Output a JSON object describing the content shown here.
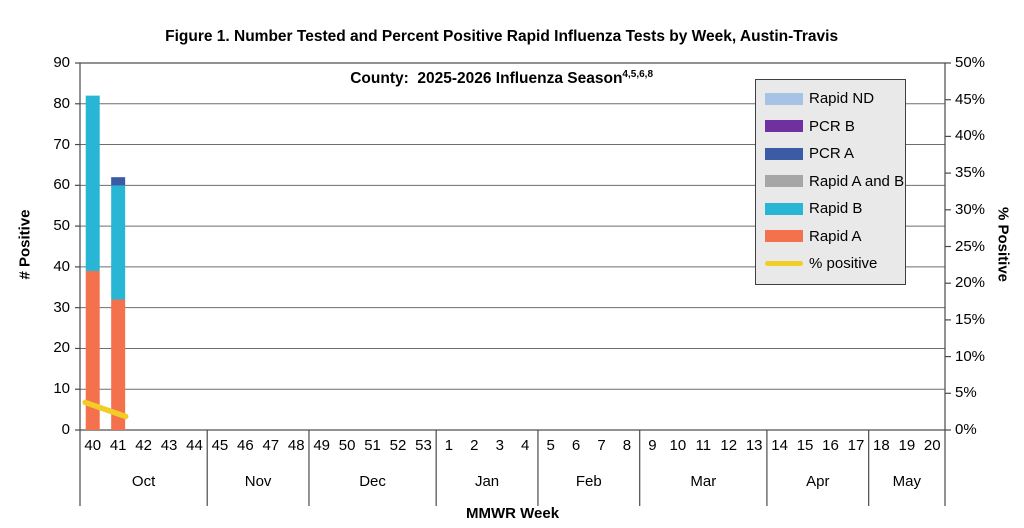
{
  "figure": {
    "title_line1": "Figure 1. Number Tested and Percent Positive Rapid Influenza Tests by Week, Austin-Travis",
    "title_line2": "County:  2025-2026 Influenza Season",
    "title_superscript": "4,5,6,8"
  },
  "chart_data": {
    "type": "bar",
    "overlay": "line",
    "title": "Figure 1. Number Tested and Percent Positive Rapid Influenza Tests by Week, Austin-Travis County: 2025-2026 Influenza Season",
    "xlabel": "MMWR Week",
    "left_axis": {
      "label": "# Positive",
      "min": 0,
      "max": 90,
      "step": 10
    },
    "right_axis": {
      "label": "% Positive",
      "min": 0,
      "max": 50,
      "step": 5,
      "suffix": "%"
    },
    "grid": "horizontal",
    "legend_position": "upper-right-inside",
    "categories": [
      "40",
      "41",
      "42",
      "43",
      "44",
      "45",
      "46",
      "47",
      "48",
      "49",
      "50",
      "51",
      "52",
      "53",
      "1",
      "2",
      "3",
      "4",
      "5",
      "6",
      "7",
      "8",
      "9",
      "10",
      "11",
      "12",
      "13",
      "14",
      "15",
      "16",
      "17",
      "18",
      "19",
      "20"
    ],
    "month_groups": [
      {
        "label": "Oct",
        "weeks": 5
      },
      {
        "label": "Nov",
        "weeks": 4
      },
      {
        "label": "Dec",
        "weeks": 5
      },
      {
        "label": "Jan",
        "weeks": 4
      },
      {
        "label": "Feb",
        "weeks": 4
      },
      {
        "label": "Mar",
        "weeks": 5
      },
      {
        "label": "Apr",
        "weeks": 4
      },
      {
        "label": "May",
        "weeks": 3
      }
    ],
    "series": [
      {
        "name": "Rapid A",
        "color": "#f4714d",
        "values": [
          39,
          32,
          0,
          0,
          0,
          0,
          0,
          0,
          0,
          0,
          0,
          0,
          0,
          0,
          0,
          0,
          0,
          0,
          0,
          0,
          0,
          0,
          0,
          0,
          0,
          0,
          0,
          0,
          0,
          0,
          0,
          0,
          0,
          0
        ]
      },
      {
        "name": "Rapid B",
        "color": "#29b5d4",
        "values": [
          43,
          28,
          0,
          0,
          0,
          0,
          0,
          0,
          0,
          0,
          0,
          0,
          0,
          0,
          0,
          0,
          0,
          0,
          0,
          0,
          0,
          0,
          0,
          0,
          0,
          0,
          0,
          0,
          0,
          0,
          0,
          0,
          0,
          0
        ]
      },
      {
        "name": "Rapid A and B",
        "color": "#a6a6a6",
        "values": [
          0,
          0,
          0,
          0,
          0,
          0,
          0,
          0,
          0,
          0,
          0,
          0,
          0,
          0,
          0,
          0,
          0,
          0,
          0,
          0,
          0,
          0,
          0,
          0,
          0,
          0,
          0,
          0,
          0,
          0,
          0,
          0,
          0,
          0
        ]
      },
      {
        "name": "PCR A",
        "color": "#3c5ba5",
        "values": [
          0,
          2,
          0,
          0,
          0,
          0,
          0,
          0,
          0,
          0,
          0,
          0,
          0,
          0,
          0,
          0,
          0,
          0,
          0,
          0,
          0,
          0,
          0,
          0,
          0,
          0,
          0,
          0,
          0,
          0,
          0,
          0,
          0,
          0
        ]
      },
      {
        "name": "PCR B",
        "color": "#7030a0",
        "values": [
          0,
          0,
          0,
          0,
          0,
          0,
          0,
          0,
          0,
          0,
          0,
          0,
          0,
          0,
          0,
          0,
          0,
          0,
          0,
          0,
          0,
          0,
          0,
          0,
          0,
          0,
          0,
          0,
          0,
          0,
          0,
          0,
          0,
          0
        ]
      },
      {
        "name": "Rapid ND",
        "color": "#a6c3e6",
        "values": [
          0,
          0,
          0,
          0,
          0,
          0,
          0,
          0,
          0,
          0,
          0,
          0,
          0,
          0,
          0,
          0,
          0,
          0,
          0,
          0,
          0,
          0,
          0,
          0,
          0,
          0,
          0,
          0,
          0,
          0,
          0,
          0,
          0,
          0
        ]
      }
    ],
    "line_series": {
      "name": "% positive",
      "color": "#f2cd27",
      "values": [
        3.4,
        2.2,
        null,
        null,
        null,
        null,
        null,
        null,
        null,
        null,
        null,
        null,
        null,
        null,
        null,
        null,
        null,
        null,
        null,
        null,
        null,
        null,
        null,
        null,
        null,
        null,
        null,
        null,
        null,
        null,
        null,
        null,
        null,
        null
      ]
    },
    "legend": [
      {
        "label": "Rapid ND",
        "color": "#a6c3e6",
        "type": "box"
      },
      {
        "label": "PCR B",
        "color": "#7030a0",
        "type": "box"
      },
      {
        "label": "PCR A",
        "color": "#3c5ba5",
        "type": "box"
      },
      {
        "label": "Rapid A and B",
        "color": "#a6a6a6",
        "type": "box"
      },
      {
        "label": "Rapid B",
        "color": "#29b5d4",
        "type": "box"
      },
      {
        "label": "Rapid A",
        "color": "#f4714d",
        "type": "box"
      },
      {
        "label": "% positive",
        "color": "#f2cd27",
        "type": "line"
      }
    ]
  }
}
